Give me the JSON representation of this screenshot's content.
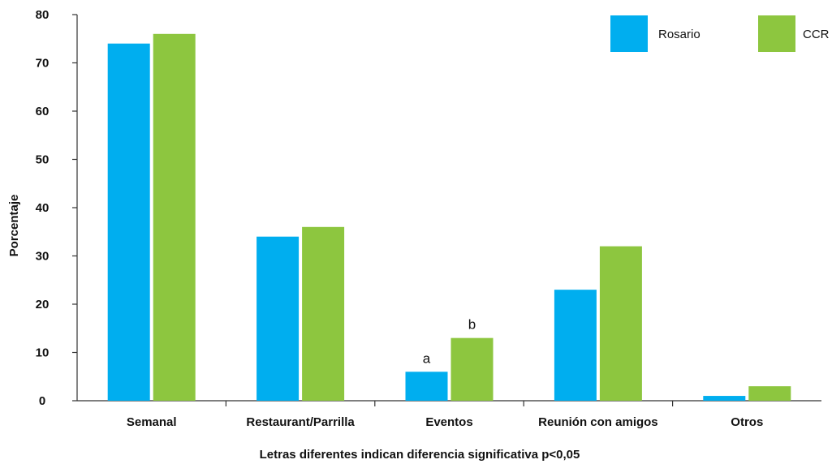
{
  "chart_data": {
    "type": "bar",
    "title": "",
    "ylabel": "Porcentaje",
    "xlabel": "",
    "note": "Letras diferentes indican diferencia significativa p<0,05",
    "categories": [
      "Semanal",
      "Restaurant/Parrilla",
      "Eventos",
      "Reunión con amigos",
      "Otros"
    ],
    "series": [
      {
        "name": "Rosario",
        "color": "#00aeef",
        "values": [
          74,
          34,
          6,
          23,
          1
        ]
      },
      {
        "name": "CCR",
        "color": "#8dc63f",
        "values": [
          76,
          36,
          13,
          32,
          3
        ]
      }
    ],
    "ylim": [
      0,
      80
    ],
    "yticks": [
      0,
      10,
      20,
      30,
      40,
      50,
      60,
      70,
      80
    ],
    "grid": false,
    "legend_position": "top-right",
    "annotations": [
      {
        "category": "Eventos",
        "series": "Rosario",
        "text": "a"
      },
      {
        "category": "Eventos",
        "series": "CCR",
        "text": "b"
      }
    ]
  }
}
